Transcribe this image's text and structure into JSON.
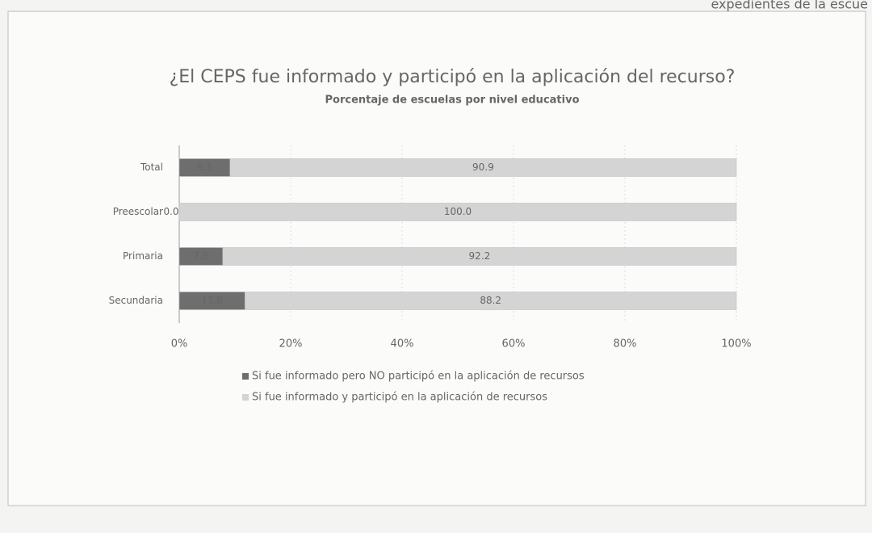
{
  "chart_data": {
    "type": "bar",
    "orientation": "horizontal",
    "stacked": true,
    "annotations": [
      "expedientes de la escue"
    ],
    "title": "¿El CEPS fue informado y participó en la aplicación del recurso?",
    "subtitle": "Porcentaje de escuelas por nivel educativo",
    "categories": [
      "Total",
      "Preescolar",
      "Primaria",
      "Secundaria"
    ],
    "series": [
      {
        "name": "Si fue informado pero NO participó en la aplicación de recursos",
        "color": "#6e6e6e",
        "values": [
          9.1,
          0.0,
          7.8,
          11.8
        ],
        "value_labels": [
          "9.1",
          "0.0",
          "7.8",
          "11.8"
        ]
      },
      {
        "name": "Si fue informado y participó en la aplicación de recursos",
        "color": "#d4d4d4",
        "values": [
          90.9,
          100.0,
          92.2,
          88.2
        ],
        "value_labels": [
          "90.9",
          "100.0",
          "92.2",
          "88.2"
        ]
      }
    ],
    "xlim": [
      0,
      100
    ],
    "xticks": [
      {
        "value": 0,
        "label": "0%"
      },
      {
        "value": 20,
        "label": "20%"
      },
      {
        "value": 40,
        "label": "40%"
      },
      {
        "value": 60,
        "label": "60%"
      },
      {
        "value": 80,
        "label": "80%"
      },
      {
        "value": 100,
        "label": "100%"
      }
    ],
    "grid": true,
    "legend": "bottom"
  }
}
